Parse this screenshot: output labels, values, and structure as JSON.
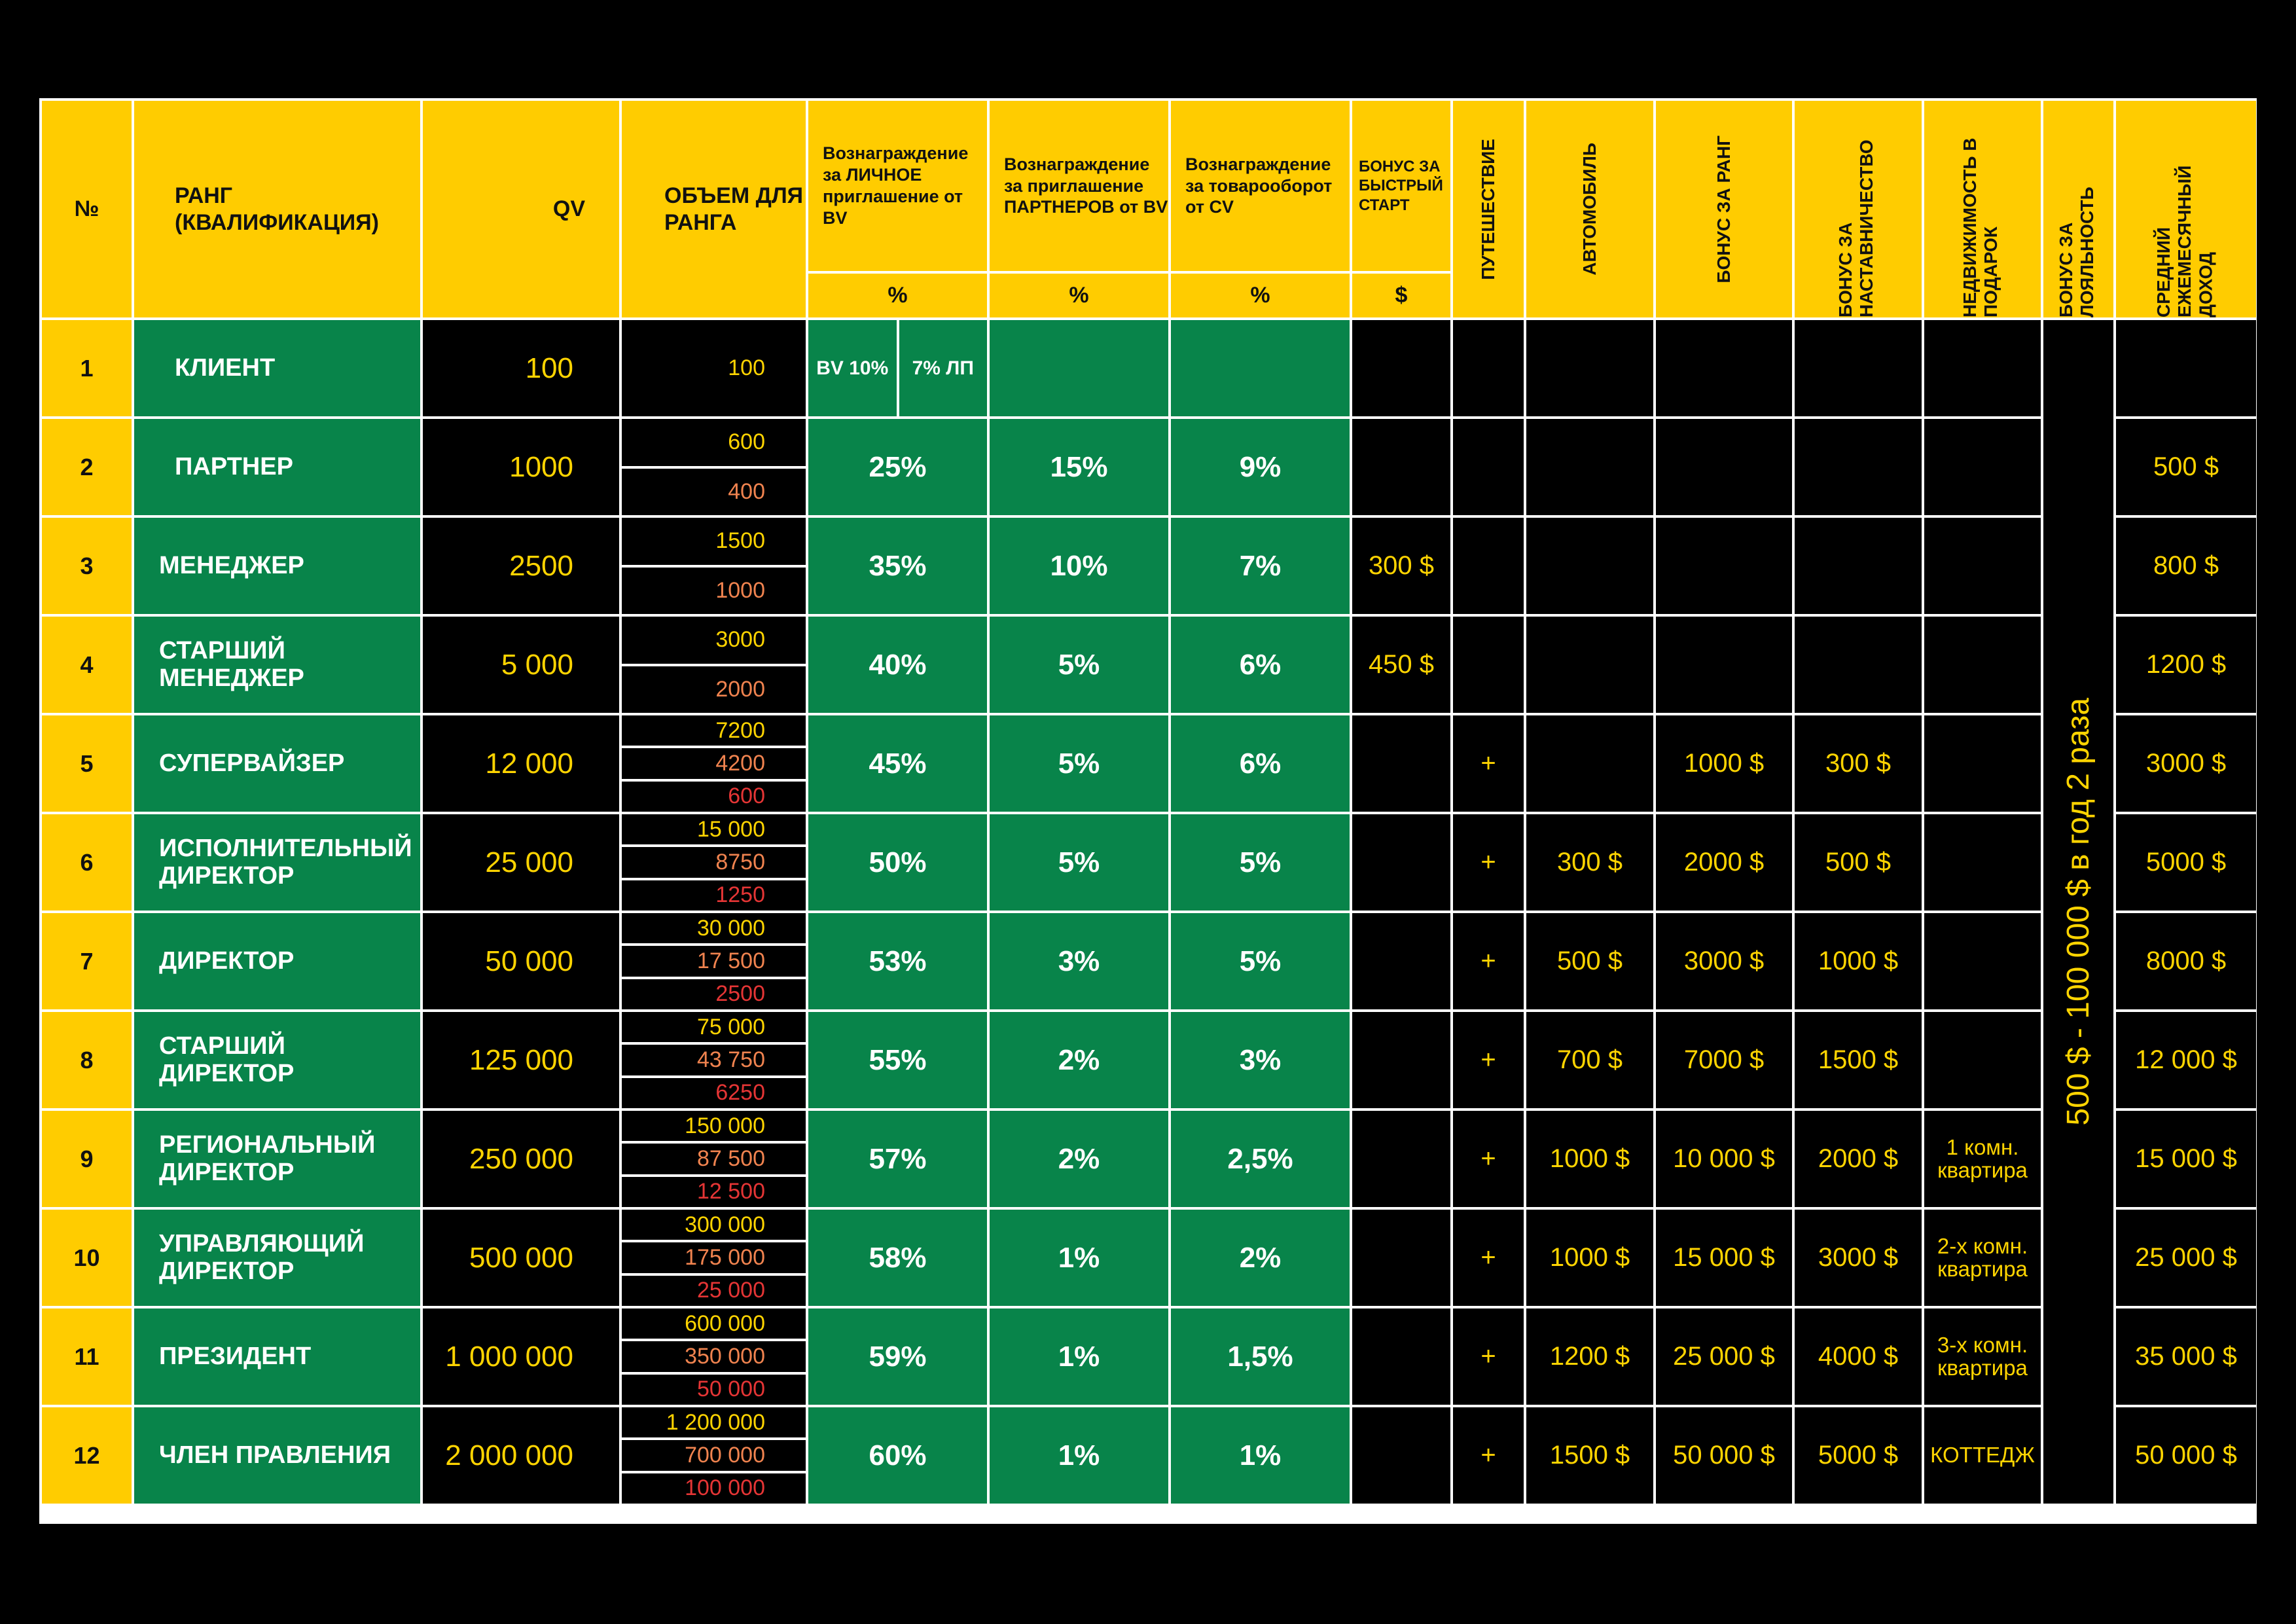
{
  "header": {
    "num": "№",
    "rank": "РАНГ (КВАЛИФИКАЦИЯ)",
    "qv": "QV",
    "volume": "ОБЪЕМ ДЛЯ РАНГА",
    "personal": "Вознаграждение за ЛИЧНОЕ приглашение от BV",
    "partners": "Вознаграждение за приглашение ПАРТНЕРОВ от BV",
    "turnover": "Вознаграждение за товарооборот от CV",
    "fast_start": "БОНУС ЗА БЫСТРЫЙ СТАРТ",
    "travel": "ПУТЕШЕСТВИЕ",
    "car": "АВТОМОБИЛЬ",
    "rank_bonus": "БОНУС ЗА РАНГ",
    "mentor_bonus": "БОНУС ЗА НАСТАВНИЧЕСТВО",
    "real_estate": "НЕДВИЖИМОСТЬ В ПОДАРОК",
    "loyalty": "БОНУС ЗА ЛОЯЛЬНОСТЬ",
    "income": "СРЕДНИЙ ЕЖЕМЕСЯЧНЫЙ ДОХОД",
    "unit_pct": "%",
    "unit_usd": "$"
  },
  "row1": {
    "num": "1",
    "rank": "КЛИЕНТ",
    "qv": "100",
    "volume": "100",
    "bv": "BV 10%",
    "lp": "7% ЛП"
  },
  "loyalty_value": "500 $ - 100 000 $ в год 2 раза",
  "rows": [
    {
      "num": "2",
      "rank": "ПАРТНЕР",
      "qv": "1000",
      "vol": [
        "600",
        "400"
      ],
      "personal": "25%",
      "partners": "15%",
      "turnover": "9%",
      "fast": "",
      "travel": "",
      "car": "",
      "rank_bonus": "",
      "mentor": "",
      "estate": "",
      "income": "500 $"
    },
    {
      "num": "3",
      "rank": "МЕНЕДЖЕР",
      "qv": "2500",
      "vol": [
        "1500",
        "1000"
      ],
      "personal": "35%",
      "partners": "10%",
      "turnover": "7%",
      "fast": "300 $",
      "travel": "",
      "car": "",
      "rank_bonus": "",
      "mentor": "",
      "estate": "",
      "income": "800 $"
    },
    {
      "num": "4",
      "rank": "СТАРШИЙ МЕНЕДЖЕР",
      "qv": "5 000",
      "vol": [
        "3000",
        "2000"
      ],
      "personal": "40%",
      "partners": "5%",
      "turnover": "6%",
      "fast": "450 $",
      "travel": "",
      "car": "",
      "rank_bonus": "",
      "mentor": "",
      "estate": "",
      "income": "1200 $"
    },
    {
      "num": "5",
      "rank": "СУПЕРВАЙЗЕР",
      "qv": "12 000",
      "vol": [
        "7200",
        "4200",
        "600"
      ],
      "personal": "45%",
      "partners": "5%",
      "turnover": "6%",
      "fast": "",
      "travel": "+",
      "car": "",
      "rank_bonus": "1000 $",
      "mentor": "300 $",
      "estate": "",
      "income": "3000 $"
    },
    {
      "num": "6",
      "rank": "ИСПОЛНИТЕЛЬНЫЙ ДИРЕКТОР",
      "qv": "25 000",
      "vol": [
        "15 000",
        "8750",
        "1250"
      ],
      "personal": "50%",
      "partners": "5%",
      "turnover": "5%",
      "fast": "",
      "travel": "+",
      "car": "300 $",
      "rank_bonus": "2000 $",
      "mentor": "500 $",
      "estate": "",
      "income": "5000 $"
    },
    {
      "num": "7",
      "rank": "ДИРЕКТОР",
      "qv": "50 000",
      "vol": [
        "30 000",
        "17 500",
        "2500"
      ],
      "personal": "53%",
      "partners": "3%",
      "turnover": "5%",
      "fast": "",
      "travel": "+",
      "car": "500 $",
      "rank_bonus": "3000 $",
      "mentor": "1000 $",
      "estate": "",
      "income": "8000 $"
    },
    {
      "num": "8",
      "rank": "СТАРШИЙ ДИРЕКТОР",
      "qv": "125 000",
      "vol": [
        "75 000",
        "43 750",
        "6250"
      ],
      "personal": "55%",
      "partners": "2%",
      "turnover": "3%",
      "fast": "",
      "travel": "+",
      "car": "700 $",
      "rank_bonus": "7000 $",
      "mentor": "1500 $",
      "estate": "",
      "income": "12 000 $"
    },
    {
      "num": "9",
      "rank": "РЕГИОНАЛЬНЫЙ ДИРЕКТОР",
      "qv": "250 000",
      "vol": [
        "150 000",
        "87 500",
        "12 500"
      ],
      "personal": "57%",
      "partners": "2%",
      "turnover": "2,5%",
      "fast": "",
      "travel": "+",
      "car": "1000 $",
      "rank_bonus": "10 000 $",
      "mentor": "2000 $",
      "estate": "1 комн. квартира",
      "income": "15 000 $"
    },
    {
      "num": "10",
      "rank": "УПРАВЛЯЮЩИЙ ДИРЕКТОР",
      "qv": "500 000",
      "vol": [
        "300 000",
        "175 000",
        "25 000"
      ],
      "personal": "58%",
      "partners": "1%",
      "turnover": "2%",
      "fast": "",
      "travel": "+",
      "car": "1000 $",
      "rank_bonus": "15 000 $",
      "mentor": "3000 $",
      "estate": "2-х комн. квартира",
      "income": "25 000 $"
    },
    {
      "num": "11",
      "rank": "ПРЕЗИДЕНТ",
      "qv": "1 000 000",
      "vol": [
        "600 000",
        "350 000",
        "50 000"
      ],
      "personal": "59%",
      "partners": "1%",
      "turnover": "1,5%",
      "fast": "",
      "travel": "+",
      "car": "1200 $",
      "rank_bonus": "25 000 $",
      "mentor": "4000 $",
      "estate": "3-х комн. квартира",
      "income": "35 000 $"
    },
    {
      "num": "12",
      "rank": "ЧЛЕН ПРАВЛЕНИЯ",
      "qv": "2 000 000",
      "vol": [
        "1 200 000",
        "700 000",
        "100 000"
      ],
      "personal": "60%",
      "partners": "1%",
      "turnover": "1%",
      "fast": "",
      "travel": "+",
      "car": "1500 $",
      "rank_bonus": "50 000 $",
      "mentor": "5000 $",
      "estate": "КОТТЕДЖ",
      "income": "50 000 $"
    }
  ]
}
